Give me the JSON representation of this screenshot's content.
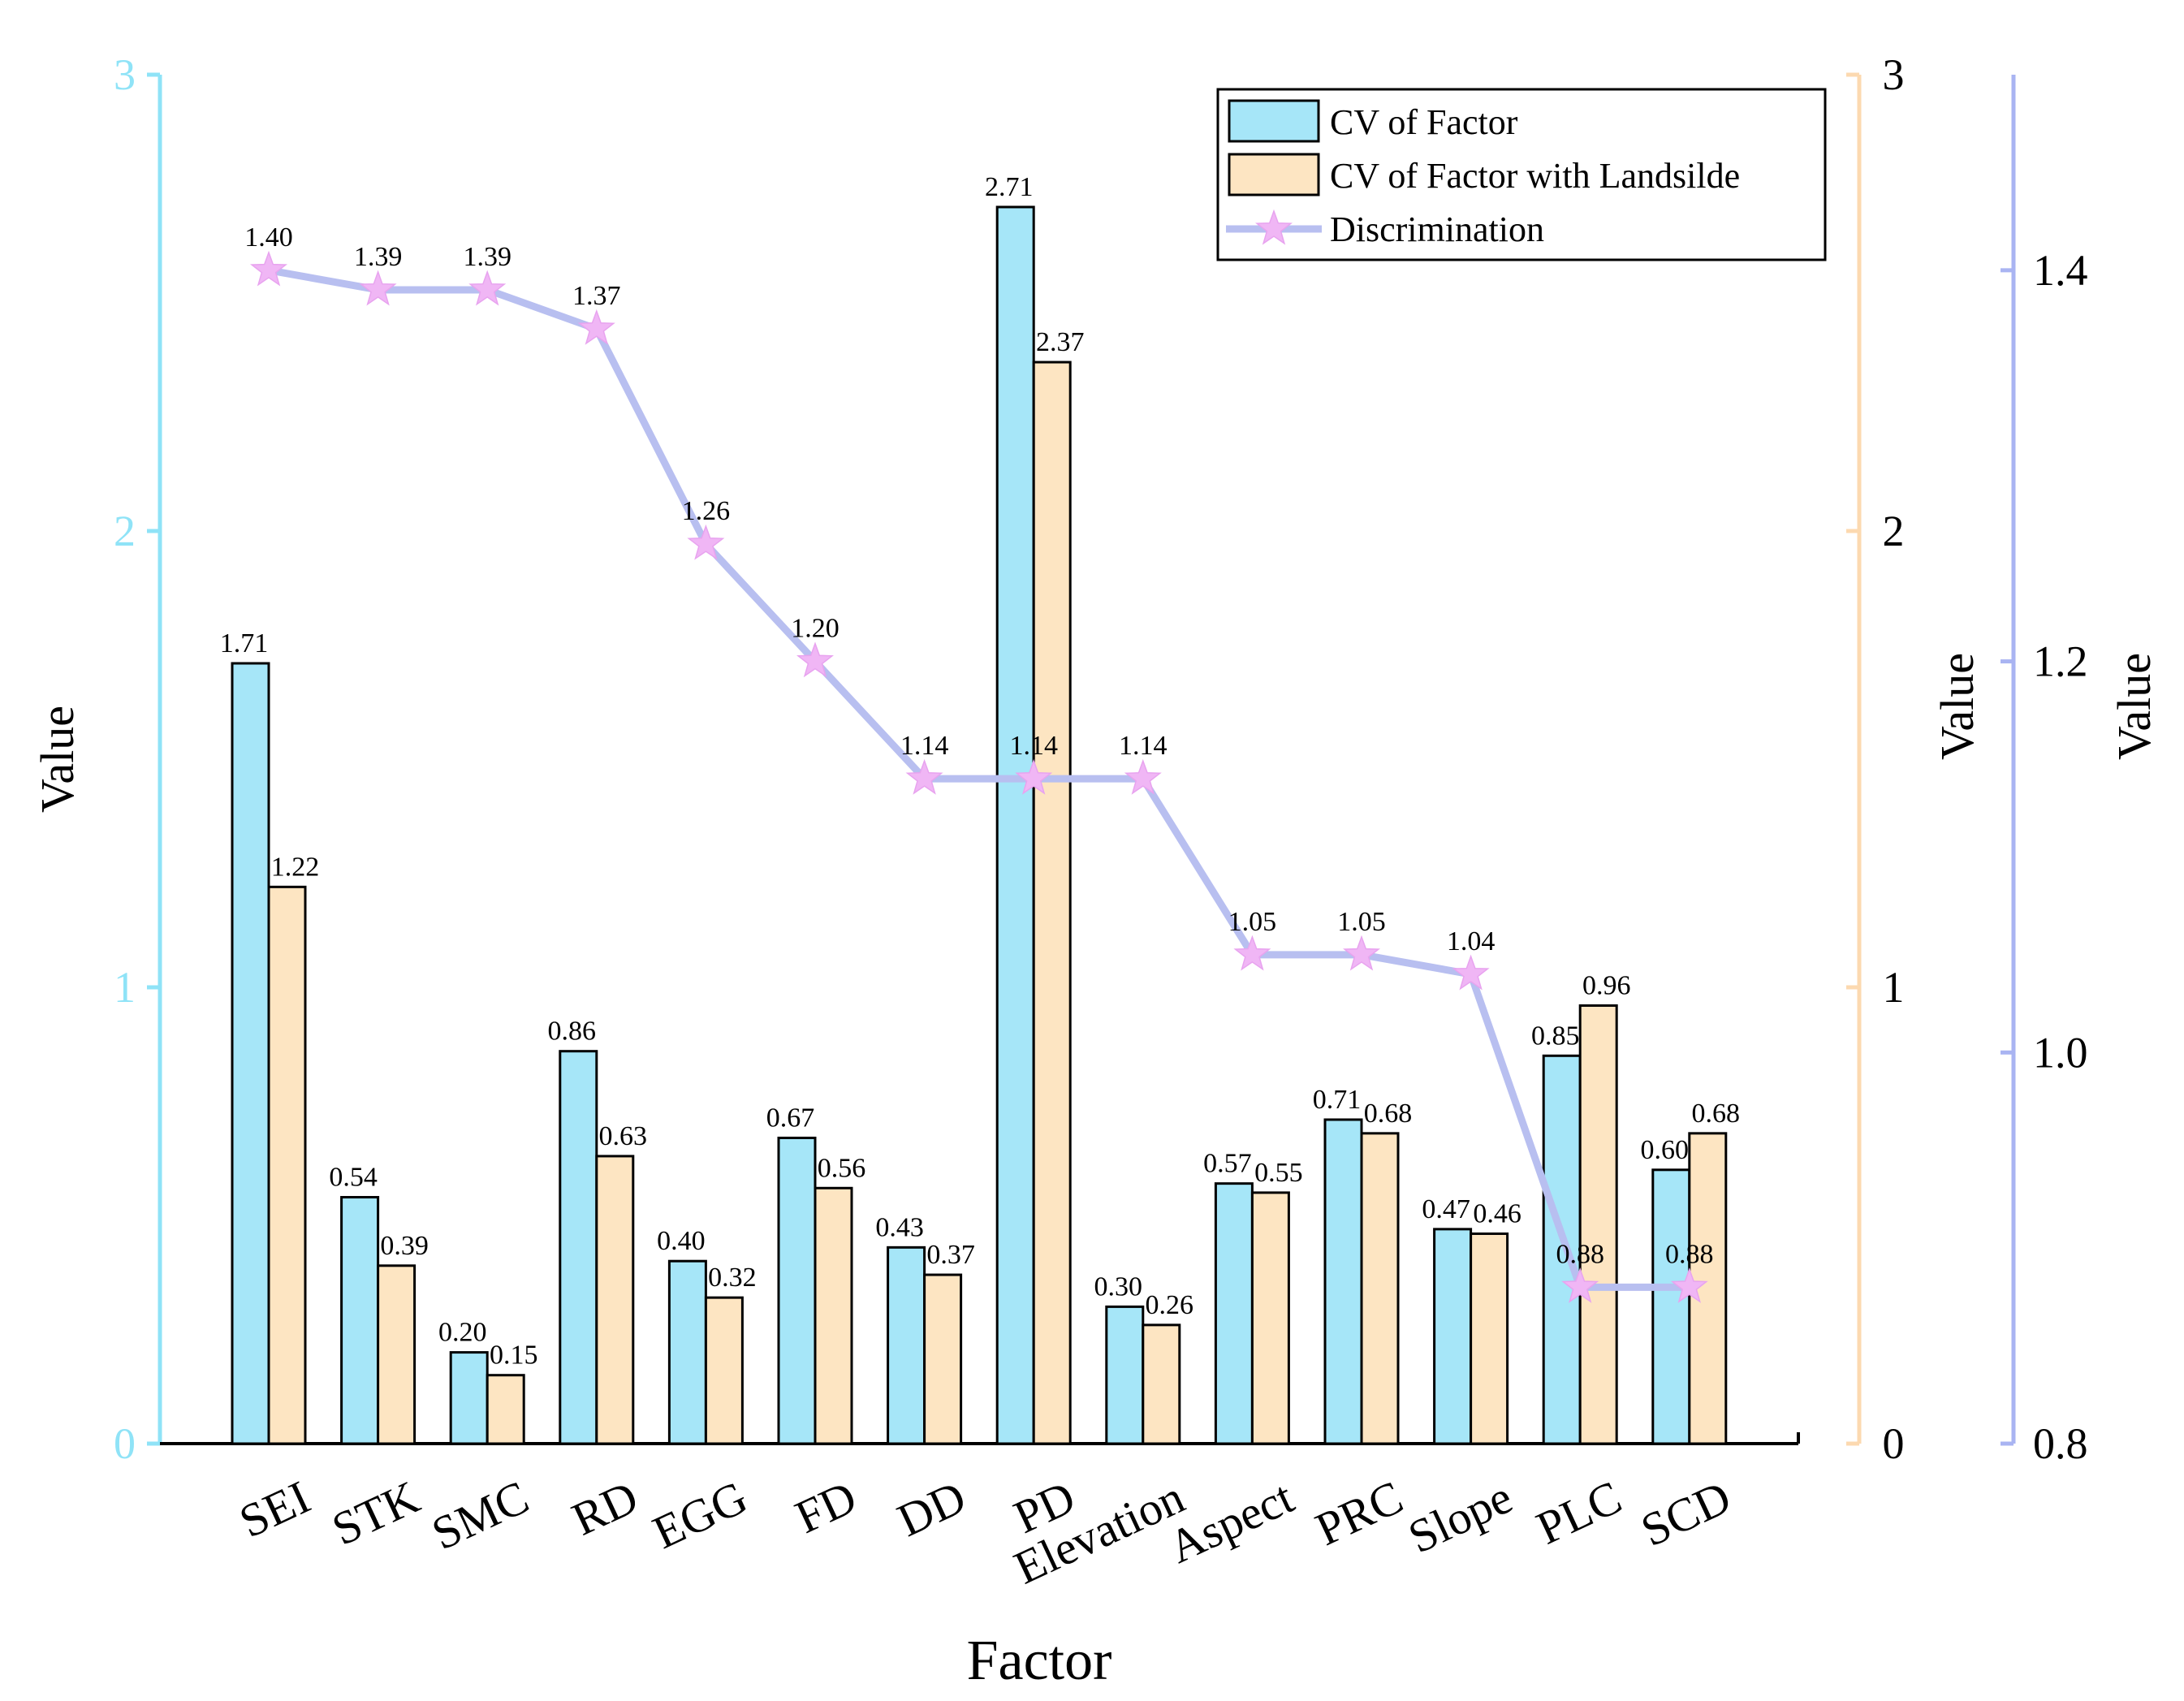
{
  "chart_data": {
    "type": "bar",
    "xlabel": "Factor",
    "categories": [
      "SEI",
      "STK",
      "SMC",
      "RD",
      "EGG",
      "FD",
      "DD",
      "PD",
      "Elevation",
      "Aspect",
      "PRC",
      "Slope",
      "PLC",
      "SCD"
    ],
    "series": [
      {
        "name": "CV of Factor",
        "type": "bar",
        "axis": "left",
        "color": "#a6e6f8",
        "values": [
          1.71,
          0.54,
          0.2,
          0.86,
          0.4,
          0.67,
          0.43,
          2.71,
          0.3,
          0.57,
          0.71,
          0.47,
          0.85,
          0.6
        ],
        "labels": [
          "1.71",
          "0.54",
          "0.20",
          "0.86",
          "0.40",
          "0.67",
          "0.43",
          "2.71",
          "0.30",
          "0.57",
          "0.71",
          "0.47",
          "0.85",
          "0.60"
        ]
      },
      {
        "name": "CV of Factor with Landsilde",
        "type": "bar",
        "axis": "right1",
        "color": "#fde5c2",
        "values": [
          1.22,
          0.39,
          0.15,
          0.63,
          0.32,
          0.56,
          0.37,
          2.37,
          0.26,
          0.55,
          0.68,
          0.46,
          0.96,
          0.68
        ],
        "labels": [
          "1.22",
          "0.39",
          "0.15",
          "0.63",
          "0.32",
          "0.56",
          "0.37",
          "2.37",
          "0.26",
          "0.55",
          "0.68",
          "0.46",
          "0.96",
          "0.68"
        ]
      },
      {
        "name": "Discrimination",
        "type": "line",
        "axis": "right2",
        "color": "#b8bff0",
        "marker_color": "#f0b6f5",
        "values": [
          1.4,
          1.39,
          1.39,
          1.37,
          1.26,
          1.2,
          1.14,
          1.14,
          1.14,
          1.05,
          1.05,
          1.04,
          0.88,
          0.88
        ],
        "labels": [
          "1.40",
          "1.39",
          "1.39",
          "1.37",
          "1.26",
          "1.20",
          "1.14",
          "1.14",
          "1.14",
          "1.05",
          "1.05",
          "1.04",
          "0.88",
          "0.88"
        ]
      }
    ],
    "axes": {
      "left": {
        "label": "Value",
        "ylim": [
          0,
          3
        ],
        "ticks": [
          "0",
          "1",
          "2",
          "3"
        ],
        "color": "#8fe3f7"
      },
      "right1": {
        "label": "Value",
        "ylim": [
          0,
          3
        ],
        "ticks": [
          "0",
          "1",
          "2",
          "3"
        ],
        "color": "#fcd9b0"
      },
      "right2": {
        "label": "Value",
        "ylim": [
          0.8,
          1.5
        ],
        "ticks": [
          "0.8",
          "1.0",
          "1.2",
          "1.4"
        ],
        "color": "#a9b4f2"
      }
    },
    "legend_position": "top-right",
    "grid": false
  }
}
